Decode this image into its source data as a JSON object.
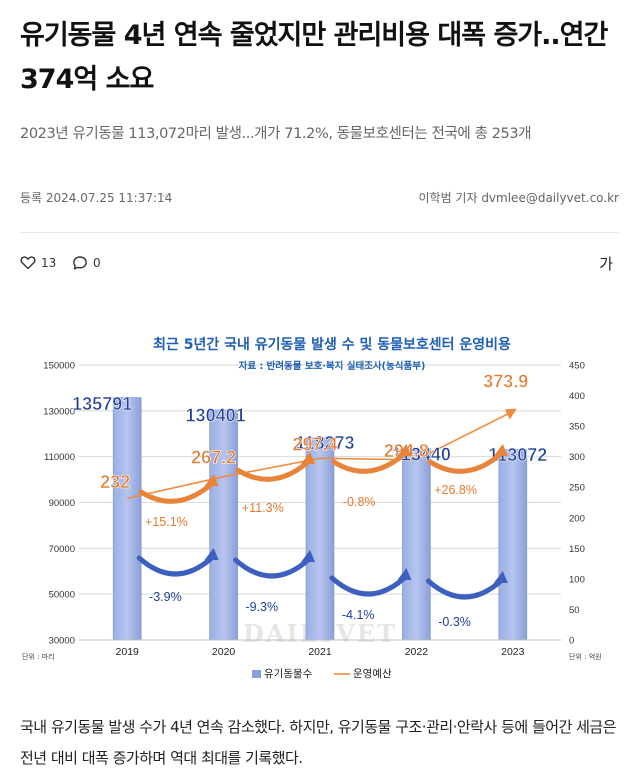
{
  "article": {
    "headline": "유기동물 4년 연속 줄었지만 관리비용 대폭 증가..연간 374억 소요",
    "subtitle": "2023년 유기동물 113,072마리 발생...개가 71.2%, 동물보호센터는 전국에 총 253개",
    "date": "등록 2024.07.25 11:37:14",
    "author": "이학범 기자 dvmlee@dailyvet.co.kr",
    "likes": "13",
    "comments": "0",
    "font_button": "가",
    "body": "국내 유기동물 발생 수가 4년 연속 감소했다. 하지만, 유기동물 구조·관리·안락사 등에 들어간 세금은 전년 대비 대폭 증가하며 역대 최대를 기록했다."
  },
  "icons": {
    "like": "heart-icon",
    "comment": "speech-bubble-icon",
    "date_toggle": "chevron-down-icon"
  },
  "chart_data": {
    "type": "bar",
    "title": "최근 5년간 국내 유기동물 발생 수 및 동물보호센터 운영비용",
    "subtitle": "자료 : 반려동물 보호·복지 실태조사(농식품부)",
    "categories": [
      "2019",
      "2020",
      "2021",
      "2022",
      "2023"
    ],
    "series": [
      {
        "name": "유기동물수",
        "kind": "bar",
        "axis": "left",
        "values": [
          135791,
          130401,
          118273,
          113440,
          113072
        ],
        "color": "#8a9fd9"
      },
      {
        "name": "운영예산",
        "kind": "line",
        "axis": "right",
        "values": [
          232,
          267.2,
          297.4,
          294.8,
          373.9
        ],
        "color": "#f08a3e"
      }
    ],
    "left_axis": {
      "unit": "단위 : 마리",
      "ylim": [
        30000,
        150000
      ],
      "ticks": [
        "30000",
        "50000",
        "70000",
        "90000",
        "110000",
        "130000",
        "150000"
      ]
    },
    "right_axis": {
      "unit": "단위 : 억원",
      "ylim": [
        0,
        450
      ],
      "ticks": [
        "0",
        "50",
        "100",
        "150",
        "200",
        "250",
        "300",
        "350",
        "400",
        "450"
      ]
    },
    "bar_labels": [
      "135791",
      "130401",
      "118273",
      "113440",
      "113072"
    ],
    "line_labels": [
      "232",
      "267.2",
      "297.4",
      "294.8",
      "373.9"
    ],
    "bar_changes": [
      "-3.9%",
      "-9.3%",
      "-4.1%",
      "-0.3%"
    ],
    "line_changes": [
      "+15.1%",
      "+11.3%",
      "-0.8%",
      "+26.8%"
    ],
    "watermark": "DAILYVET",
    "grid": true,
    "legend_position": "bottom"
  }
}
